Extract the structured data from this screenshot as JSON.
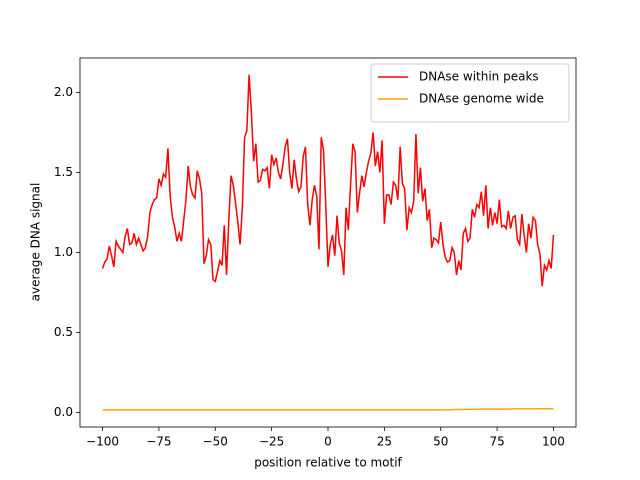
{
  "chart_data": {
    "type": "line",
    "xlabel": "position relative to motif",
    "ylabel": "average DNA signal",
    "xlim": [
      -110,
      110
    ],
    "ylim": [
      -0.09,
      2.215
    ],
    "xticks": [
      {
        "value": -100,
        "label": "−100"
      },
      {
        "value": -75,
        "label": "−75"
      },
      {
        "value": -50,
        "label": "−50"
      },
      {
        "value": -25,
        "label": "−25"
      },
      0,
      25,
      50,
      75,
      100
    ],
    "yticks": [
      {
        "value": 0,
        "label": "0.0"
      },
      0.5,
      {
        "value": 1,
        "label": "1.0"
      },
      1.5,
      {
        "value": 2,
        "label": "2.0"
      }
    ],
    "legend": "upper right",
    "x": [
      -100,
      -99,
      -98,
      -97,
      -96,
      -95,
      -94,
      -93,
      -92,
      -91,
      -90,
      -89,
      -88,
      -87,
      -86,
      -85,
      -84,
      -83,
      -82,
      -81,
      -80,
      -79,
      -78,
      -77,
      -76,
      -75,
      -74,
      -73,
      -72,
      -71,
      -70,
      -69,
      -68,
      -67,
      -66,
      -65,
      -64,
      -63,
      -62,
      -61,
      -60,
      -59,
      -58,
      -57,
      -56,
      -55,
      -54,
      -53,
      -52,
      -51,
      -50,
      -49,
      -48,
      -47,
      -46,
      -45,
      -44,
      -43,
      -42,
      -41,
      -40,
      -39,
      -38,
      -37,
      -36,
      -35,
      -34,
      -33,
      -32,
      -31,
      -30,
      -29,
      -28,
      -27,
      -26,
      -25,
      -24,
      -23,
      -22,
      -21,
      -20,
      -19,
      -18,
      -17,
      -16,
      -15,
      -14,
      -13,
      -12,
      -11,
      -10,
      -9,
      -8,
      -7,
      -6,
      -5,
      -4,
      -3,
      -2,
      -1,
      0,
      1,
      2,
      3,
      4,
      5,
      6,
      7,
      8,
      9,
      10,
      11,
      12,
      13,
      14,
      15,
      16,
      17,
      18,
      19,
      20,
      21,
      22,
      23,
      24,
      25,
      26,
      27,
      28,
      29,
      30,
      31,
      32,
      33,
      34,
      35,
      36,
      37,
      38,
      39,
      40,
      41,
      42,
      43,
      44,
      45,
      46,
      47,
      48,
      49,
      50,
      51,
      52,
      53,
      54,
      55,
      56,
      57,
      58,
      59,
      60,
      61,
      62,
      63,
      64,
      65,
      66,
      67,
      68,
      69,
      70,
      71,
      72,
      73,
      74,
      75,
      76,
      77,
      78,
      79,
      80,
      81,
      82,
      83,
      84,
      85,
      86,
      87,
      88,
      89,
      90,
      91,
      92,
      93,
      94,
      95,
      96,
      97,
      98,
      99,
      100
    ],
    "series": [
      {
        "name": "DNAse within peaks",
        "color": "#ff0000",
        "values": [
          0.9,
          0.94,
          0.96,
          1.04,
          0.98,
          0.91,
          1.07,
          1.04,
          1.02,
          1.0,
          1.1,
          1.15,
          1.05,
          1.06,
          1.12,
          1.05,
          1.09,
          1.05,
          1.01,
          1.03,
          1.1,
          1.25,
          1.3,
          1.33,
          1.34,
          1.46,
          1.42,
          1.49,
          1.47,
          1.65,
          1.35,
          1.22,
          1.16,
          1.07,
          1.12,
          1.07,
          1.2,
          1.33,
          1.54,
          1.41,
          1.36,
          1.34,
          1.51,
          1.46,
          1.37,
          0.93,
          0.98,
          1.08,
          1.05,
          0.83,
          0.82,
          0.88,
          0.95,
          0.92,
          1.17,
          0.86,
          1.2,
          1.48,
          1.42,
          1.31,
          1.19,
          1.05,
          1.28,
          1.72,
          1.76,
          2.11,
          1.88,
          1.57,
          1.68,
          1.44,
          1.45,
          1.52,
          1.51,
          1.53,
          1.4,
          1.61,
          1.55,
          1.59,
          1.5,
          1.46,
          1.55,
          1.66,
          1.71,
          1.5,
          1.4,
          1.58,
          1.46,
          1.38,
          1.41,
          1.6,
          1.66,
          1.3,
          1.17,
          1.33,
          1.42,
          1.35,
          1.02,
          1.72,
          1.64,
          1.3,
          0.91,
          1.05,
          1.11,
          0.98,
          1.23,
          1.06,
          1.01,
          0.86,
          1.28,
          1.14,
          1.42,
          1.68,
          1.63,
          1.25,
          1.37,
          1.48,
          1.41,
          1.5,
          1.57,
          1.62,
          1.75,
          1.54,
          1.63,
          1.5,
          1.7,
          1.18,
          1.36,
          1.36,
          1.3,
          1.44,
          1.42,
          1.33,
          1.66,
          1.43,
          1.4,
          1.14,
          1.28,
          1.25,
          1.32,
          1.74,
          1.37,
          1.53,
          1.32,
          1.4,
          1.2,
          1.27,
          1.03,
          1.09,
          1.08,
          1.06,
          1.19,
          1.05,
          0.97,
          0.94,
          0.95,
          1.03,
          1.0,
          0.86,
          0.95,
          0.89,
          1.12,
          1.15,
          1.07,
          1.09,
          1.27,
          1.22,
          1.3,
          1.28,
          1.38,
          1.23,
          1.42,
          1.15,
          1.28,
          1.17,
          1.25,
          1.18,
          1.33,
          1.16,
          1.17,
          1.15,
          1.26,
          1.15,
          1.22,
          1.23,
          1.08,
          1.05,
          1.24,
          1.11,
          1.0,
          1.18,
          1.09,
          1.22,
          1.2,
          1.05,
          0.99,
          0.79,
          0.92,
          0.89,
          0.95,
          0.9,
          1.11
        ]
      },
      {
        "name": "DNAse genome wide",
        "color": "#ffa500",
        "values": [
          0.017,
          0.017,
          0.017,
          0.017,
          0.017,
          0.017,
          0.017,
          0.017,
          0.017,
          0.017,
          0.017,
          0.017,
          0.017,
          0.017,
          0.017,
          0.017,
          0.017,
          0.017,
          0.017,
          0.017,
          0.017,
          0.017,
          0.017,
          0.017,
          0.017,
          0.017,
          0.017,
          0.017,
          0.017,
          0.017,
          0.017,
          0.017,
          0.017,
          0.017,
          0.017,
          0.017,
          0.017,
          0.017,
          0.017,
          0.017,
          0.017,
          0.017,
          0.017,
          0.017,
          0.017,
          0.017,
          0.017,
          0.017,
          0.017,
          0.017,
          0.017,
          0.017,
          0.017,
          0.017,
          0.017,
          0.017,
          0.017,
          0.017,
          0.017,
          0.017,
          0.017,
          0.017,
          0.017,
          0.017,
          0.017,
          0.017,
          0.017,
          0.017,
          0.017,
          0.017,
          0.017,
          0.017,
          0.017,
          0.017,
          0.017,
          0.017,
          0.017,
          0.017,
          0.017,
          0.017,
          0.017,
          0.017,
          0.017,
          0.017,
          0.017,
          0.017,
          0.017,
          0.017,
          0.017,
          0.017,
          0.017,
          0.017,
          0.017,
          0.017,
          0.017,
          0.017,
          0.017,
          0.017,
          0.017,
          0.017,
          0.017,
          0.017,
          0.017,
          0.017,
          0.017,
          0.017,
          0.017,
          0.017,
          0.017,
          0.017,
          0.017,
          0.017,
          0.017,
          0.017,
          0.017,
          0.017,
          0.017,
          0.017,
          0.017,
          0.017,
          0.017,
          0.017,
          0.017,
          0.017,
          0.017,
          0.017,
          0.017,
          0.017,
          0.017,
          0.017,
          0.017,
          0.017,
          0.017,
          0.017,
          0.017,
          0.017,
          0.017,
          0.017,
          0.017,
          0.017,
          0.017,
          0.017,
          0.017,
          0.017,
          0.017,
          0.017,
          0.017,
          0.017,
          0.017,
          0.017,
          0.017,
          0.017,
          0.017,
          0.018,
          0.018,
          0.018,
          0.019,
          0.019,
          0.019,
          0.019,
          0.02,
          0.02,
          0.02,
          0.021,
          0.021,
          0.021,
          0.021,
          0.021,
          0.022,
          0.022,
          0.022,
          0.022,
          0.022,
          0.022,
          0.022,
          0.022,
          0.022,
          0.022,
          0.022,
          0.022,
          0.022,
          0.023,
          0.023,
          0.023,
          0.023,
          0.023,
          0.023,
          0.023,
          0.023,
          0.023,
          0.023,
          0.023,
          0.023,
          0.023,
          0.024,
          0.024,
          0.024,
          0.024,
          0.024,
          0.024,
          0.024
        ]
      }
    ]
  }
}
